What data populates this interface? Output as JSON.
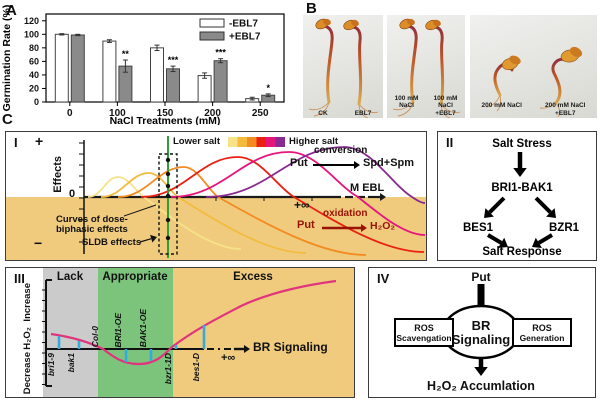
{
  "figure": {
    "panel_a_label": "A",
    "panel_b_label": "B",
    "panel_c_label": "C"
  },
  "chart_data": {
    "type": "bar",
    "title": "",
    "xlabel": "NaCl Treatments (mM)",
    "ylabel": "Germination Rate (%)",
    "categories": [
      "0",
      "100",
      "150",
      "200",
      "250"
    ],
    "series": [
      {
        "name": "-EBL7",
        "fill": "#ffffff",
        "values": [
          100,
          90,
          80,
          39,
          5
        ],
        "errors": [
          1,
          2,
          4,
          4,
          2
        ]
      },
      {
        "name": "+EBL7",
        "fill": "#8a8a8a",
        "values": [
          99,
          53,
          49,
          61,
          10
        ],
        "errors": [
          1,
          9,
          4,
          3,
          2
        ]
      }
    ],
    "significance": [
      "",
      "**",
      "***",
      "***",
      "*"
    ],
    "ylim": [
      0,
      130
    ],
    "yticks": [
      0,
      20,
      40,
      60,
      80,
      100,
      120
    ],
    "legend_position": "top-right",
    "grid": false
  },
  "panel_b": {
    "photos": [
      {
        "labels": [
          "CK",
          "EBL7"
        ]
      },
      {
        "labels": [
          "100 mM NaCl",
          "100 mM NaCl\n+EBL7"
        ]
      },
      {
        "labels": [
          "200 mM NaCl",
          "200 mM NaCl\n+EBL7"
        ]
      }
    ]
  },
  "panel_i": {
    "label": "I",
    "y_plus": "+",
    "y_zero": "0",
    "y_minus": "−",
    "y_axis_label": "Effects",
    "legend_low": "Lower salt",
    "legend_high": "Higher salt",
    "legend_colors": [
      "#f6e289",
      "#f3bb3e",
      "#f28b21",
      "#ea2112",
      "#e6157e",
      "#8a2a91"
    ],
    "conversion": {
      "from": "Put",
      "arrow_label": "conversion",
      "to": "Spd+Spm"
    },
    "axis_end_label": "M EBL",
    "infinity": "+∞",
    "oxidation": {
      "from": "Put",
      "arrow_label": "oxidation",
      "to": "H₂O₂"
    },
    "annotation_curves": "Curves of dose-biphasic effects",
    "annotation_sldb": "SLDB effects",
    "negative_region_color": "#f0cb7e",
    "sldb_line_color": "#2f9e38"
  },
  "panel_ii": {
    "label": "II",
    "node_top": "Salt Stress",
    "node_receptor": "BRI1-BAK1",
    "node_left": "BES1",
    "node_right": "BZR1",
    "node_bottom": "Salt Response"
  },
  "panel_iii": {
    "label": "III",
    "zones": [
      {
        "name": "Lack",
        "color": "#cbcbcb"
      },
      {
        "name": "Appropriate",
        "color": "#7cc47c"
      },
      {
        "name": "Excess",
        "color": "#f0cb7e"
      }
    ],
    "y_top": "Increase",
    "y_mid": "H₂O₂",
    "y_bottom": "Decrease",
    "x_label": "BR Signaling",
    "infinity": "+∞",
    "genotypes_below": [
      "bri1-9",
      "bak1",
      "bzr1-1D",
      "bes1-D"
    ],
    "genotypes_above": [
      "Col-0",
      "BRI1-OE",
      "BAK1-OE"
    ],
    "curve_color": "#e0347c",
    "marker_color": "#35aadc"
  },
  "panel_iv": {
    "label": "IV",
    "top": "Put",
    "left_box_line1": "ROS",
    "left_box_line2": "Scavengation",
    "center_line1": "BR",
    "center_line2": "Signaling",
    "right_box_line1": "ROS",
    "right_box_line2": "Generation",
    "bottom": "H₂O₂ Accumlation"
  }
}
